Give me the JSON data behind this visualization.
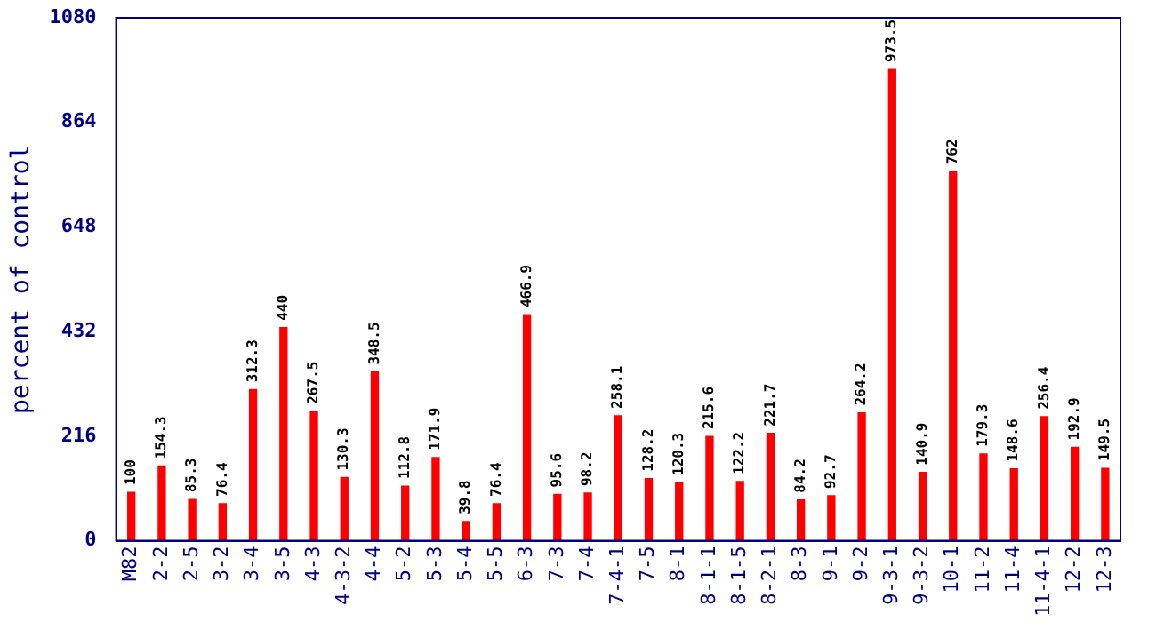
{
  "chart_data": {
    "type": "bar",
    "ylabel": "percent of control",
    "categories": [
      "M82",
      "2-2",
      "2-5",
      "3-2",
      "3-4",
      "3-5",
      "4-3",
      "4-3-2",
      "4-4",
      "5-2",
      "5-3",
      "5-4",
      "5-5",
      "6-3",
      "7-3",
      "7-4",
      "7-4-1",
      "7-5",
      "8-1",
      "8-1-1",
      "8-1-5",
      "8-2-1",
      "8-3",
      "9-1",
      "9-2",
      "9-3-1",
      "9-3-2",
      "10-1",
      "11-2",
      "11-4",
      "11-4-1",
      "12-2",
      "12-3"
    ],
    "values": [
      100,
      154.3,
      85.3,
      76.4,
      312.3,
      440,
      267.5,
      130.3,
      348.5,
      112.8,
      171.9,
      39.8,
      76.4,
      466.9,
      95.6,
      98.2,
      258.1,
      128.2,
      120.3,
      215.6,
      122.2,
      221.7,
      84.2,
      92.7,
      264.2,
      973.5,
      140.9,
      762,
      179.3,
      148.6,
      256.4,
      192.9,
      149.5
    ],
    "color": "#ff0000",
    "ylim": [
      0,
      1080
    ],
    "yticks": [
      0,
      216,
      432,
      648,
      864,
      1080
    ],
    "grid": false,
    "legend": false,
    "data_labels": true
  }
}
